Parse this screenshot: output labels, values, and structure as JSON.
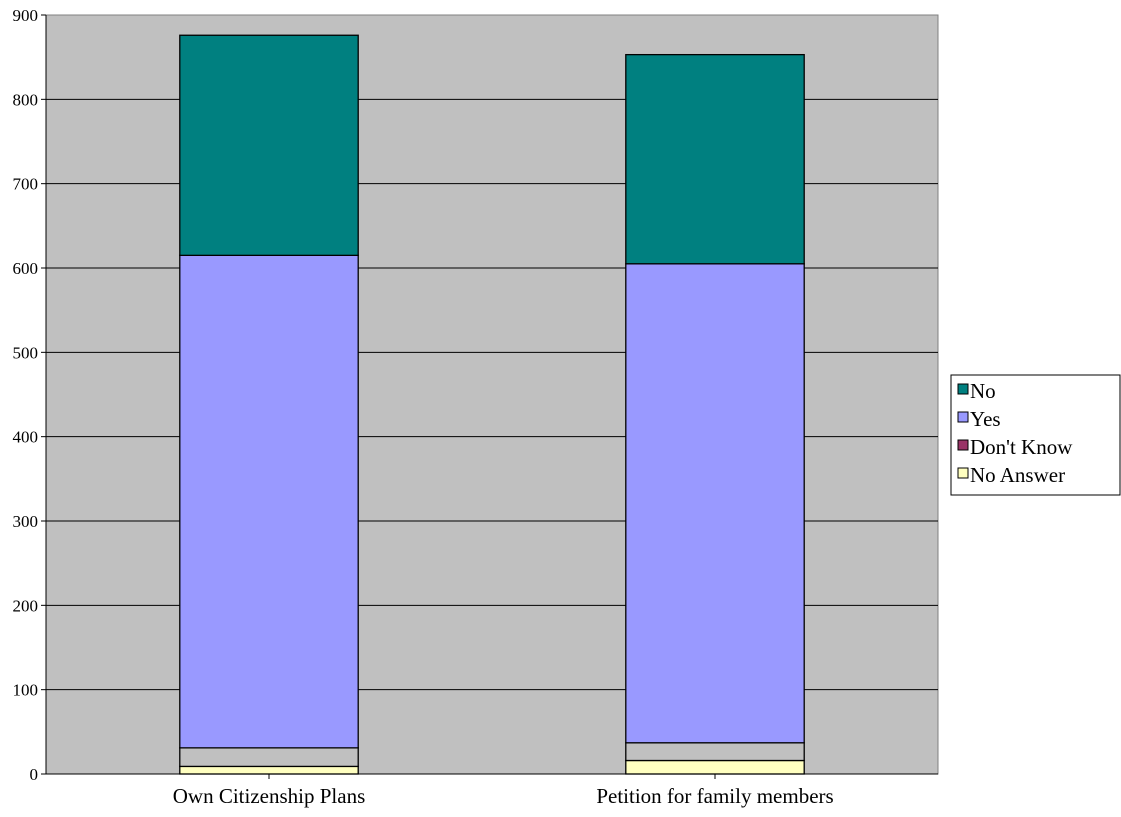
{
  "chart_data": {
    "type": "bar",
    "stacked": true,
    "title": "",
    "xlabel": "",
    "ylabel": "",
    "ylim": [
      0,
      900
    ],
    "y_ticks": [
      "0",
      "100",
      "200",
      "300",
      "400",
      "500",
      "600",
      "700",
      "800",
      "900"
    ],
    "grid": "horizontal",
    "plot_background": "#c0c0c0",
    "legend_position": "right",
    "categories": [
      "Own Citizenship Plans",
      "Petition for family members"
    ],
    "series": [
      {
        "name": "No Answer",
        "color": "#ffffc0",
        "values": [
          9,
          16
        ]
      },
      {
        "name": "Don't Know",
        "color": "#993366",
        "values": [
          0,
          0
        ]
      },
      {
        "name": "Yes",
        "color": "#9999ff",
        "values": [
          0,
          0
        ]
      },
      {
        "name": "No",
        "color": "#008080",
        "values": [
          0,
          0
        ]
      }
    ],
    "unlabeled_segments": [
      {
        "color": "#c0c0c0",
        "values": [
          22,
          21
        ]
      },
      {
        "color": "#9999ff",
        "values": [
          584,
          568
        ]
      },
      {
        "color": "#008080",
        "values": [
          261,
          248
        ]
      }
    ],
    "legend_order": [
      "No",
      "Yes",
      "Don't Know",
      "No Answer"
    ]
  }
}
